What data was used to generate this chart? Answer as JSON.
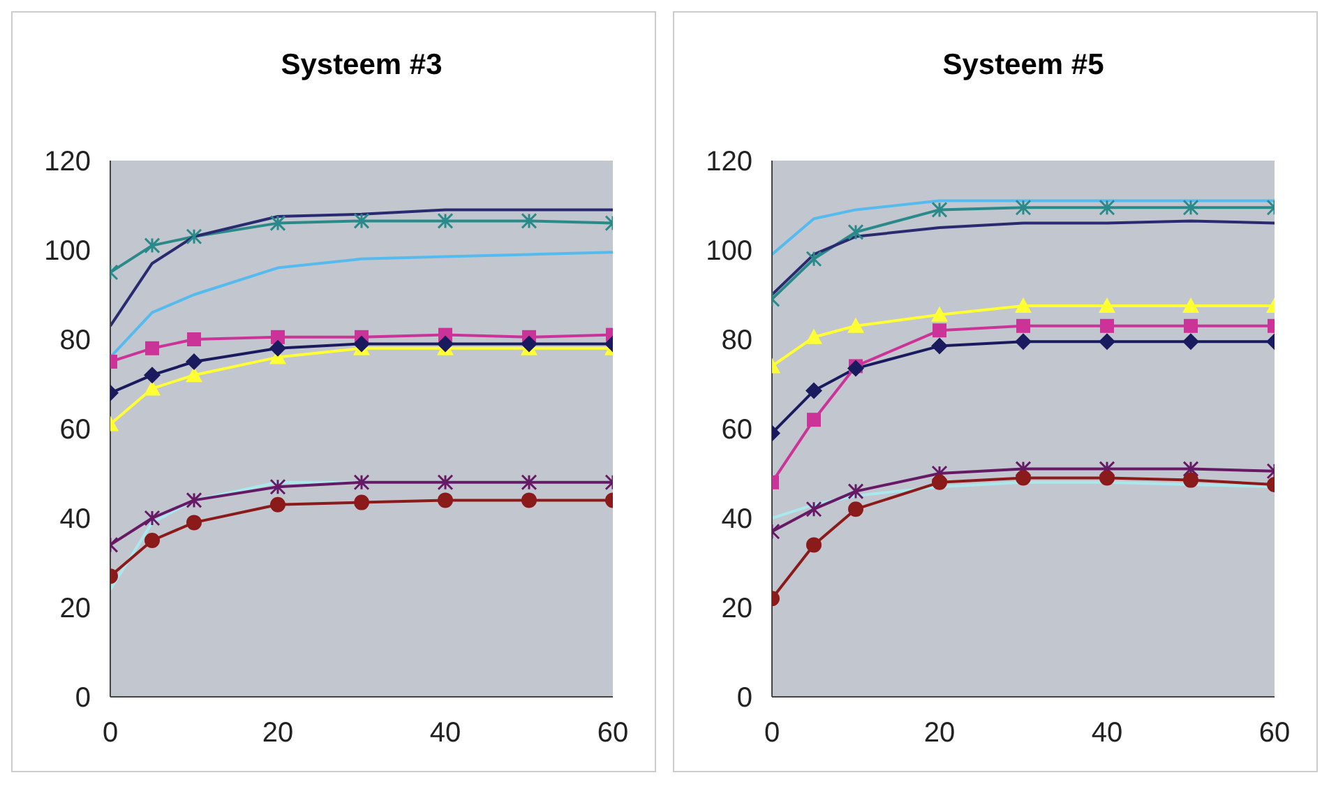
{
  "chart_data": [
    {
      "type": "line",
      "title": "Systeem #3",
      "x": [
        0,
        5,
        10,
        20,
        30,
        40,
        50,
        60
      ],
      "xlim": [
        0,
        60
      ],
      "xticks": [
        0,
        20,
        40,
        60
      ],
      "ylim": [
        0,
        120
      ],
      "yticks": [
        0,
        20,
        40,
        60,
        80,
        100,
        120
      ],
      "grid": false,
      "legend": false,
      "series": [
        {
          "color": "#aae8ee",
          "marker": "none",
          "values": [
            24,
            39,
            44,
            48,
            48,
            48,
            48,
            48
          ]
        },
        {
          "color": "#55bbee",
          "marker": "none",
          "values": [
            76,
            86,
            90,
            96,
            98,
            98.5,
            99,
            99.5
          ]
        },
        {
          "color": "#2a8a8a",
          "marker": "cross",
          "values": [
            95,
            101,
            103,
            106,
            106.5,
            106.5,
            106.5,
            106
          ]
        },
        {
          "color": "#2a2a70",
          "marker": "none",
          "values": [
            83,
            97,
            103,
            107.5,
            108,
            109,
            109,
            109
          ]
        },
        {
          "color": "#cc3399",
          "marker": "square",
          "values": [
            75,
            78,
            80,
            80.5,
            80.5,
            81,
            80.5,
            81
          ]
        },
        {
          "color": "#ffff33",
          "marker": "triangle",
          "values": [
            61,
            69,
            72,
            76,
            78,
            78,
            78,
            78
          ]
        },
        {
          "color": "#1a1a5e",
          "marker": "diamond",
          "values": [
            68,
            72,
            75,
            78,
            79,
            79,
            79,
            79
          ]
        },
        {
          "color": "#661a66",
          "marker": "cross",
          "values": [
            34,
            40,
            44,
            47,
            48,
            48,
            48,
            48
          ]
        },
        {
          "color": "#8b1a1a",
          "marker": "circle",
          "values": [
            27,
            35,
            39,
            43,
            43.5,
            44,
            44,
            44
          ]
        }
      ]
    },
    {
      "type": "line",
      "title": "Systeem #5",
      "x": [
        0,
        5,
        10,
        20,
        30,
        40,
        50,
        60
      ],
      "xlim": [
        0,
        60
      ],
      "xticks": [
        0,
        20,
        40,
        60
      ],
      "ylim": [
        0,
        120
      ],
      "yticks": [
        0,
        20,
        40,
        60,
        80,
        100,
        120
      ],
      "grid": false,
      "legend": false,
      "series": [
        {
          "color": "#aae8ee",
          "marker": "none",
          "values": [
            40,
            43,
            45,
            47,
            48,
            48,
            47.5,
            47
          ]
        },
        {
          "color": "#55bbee",
          "marker": "none",
          "values": [
            99,
            107,
            109,
            111,
            111,
            111,
            111,
            111
          ]
        },
        {
          "color": "#2a8a8a",
          "marker": "cross",
          "values": [
            89,
            98,
            104,
            109,
            109.5,
            109.5,
            109.5,
            109.5
          ]
        },
        {
          "color": "#2a2a70",
          "marker": "none",
          "values": [
            90,
            99,
            103,
            105,
            106,
            106,
            106.5,
            106
          ]
        },
        {
          "color": "#cc3399",
          "marker": "square",
          "values": [
            48,
            62,
            74,
            82,
            83,
            83,
            83,
            83
          ]
        },
        {
          "color": "#ffff33",
          "marker": "triangle",
          "values": [
            74,
            80.5,
            83,
            85.5,
            87.5,
            87.5,
            87.5,
            87.5
          ]
        },
        {
          "color": "#1a1a5e",
          "marker": "diamond",
          "values": [
            59,
            68.5,
            73.5,
            78.5,
            79.5,
            79.5,
            79.5,
            79.5
          ]
        },
        {
          "color": "#661a66",
          "marker": "cross",
          "values": [
            37,
            42,
            46,
            50,
            51,
            51,
            51,
            50.5
          ]
        },
        {
          "color": "#8b1a1a",
          "marker": "circle",
          "values": [
            22,
            34,
            42,
            48,
            49,
            49,
            48.5,
            47.5
          ]
        }
      ]
    }
  ]
}
